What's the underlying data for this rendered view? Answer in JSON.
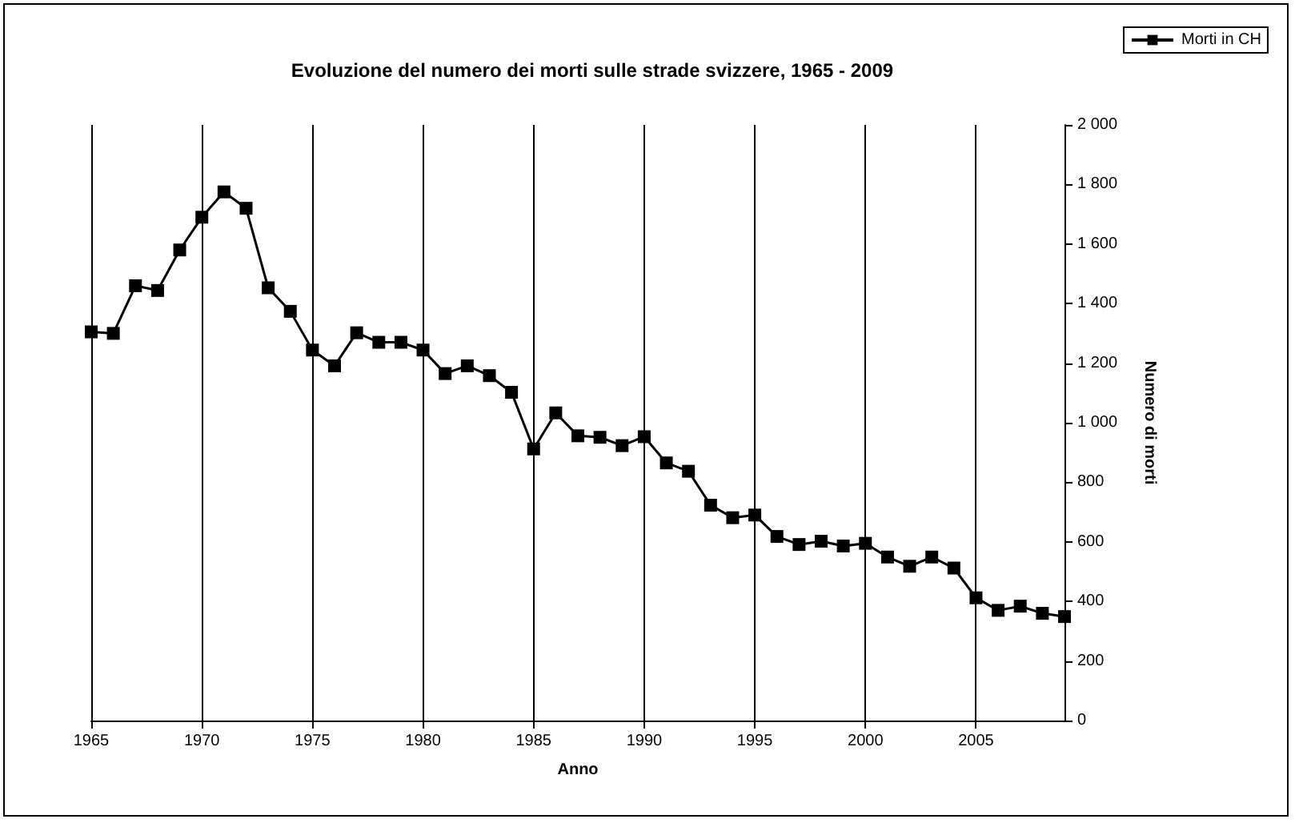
{
  "chart_data": {
    "type": "line",
    "title": "Evoluzione del numero dei morti sulle strade svizzere, 1965 - 2009",
    "xlabel": "Anno",
    "ylabel": "Numero di morti",
    "x": [
      1965,
      1966,
      1967,
      1968,
      1969,
      1970,
      1971,
      1972,
      1973,
      1974,
      1975,
      1976,
      1977,
      1978,
      1979,
      1980,
      1981,
      1982,
      1983,
      1984,
      1985,
      1986,
      1987,
      1988,
      1989,
      1990,
      1991,
      1992,
      1993,
      1994,
      1995,
      1996,
      1997,
      1998,
      1999,
      2000,
      2001,
      2002,
      2003,
      2004,
      2005,
      2006,
      2007,
      2008,
      2009
    ],
    "series": [
      {
        "name": "Morti in CH",
        "color": "#000000",
        "values": [
          1305,
          1300,
          1460,
          1444,
          1580,
          1690,
          1775,
          1720,
          1453,
          1374,
          1244,
          1191,
          1302,
          1270,
          1270,
          1244,
          1165,
          1191,
          1158,
          1102,
          912,
          1033,
          956,
          951,
          923,
          953,
          865,
          837,
          723,
          681,
          690,
          618,
          591,
          602,
          586,
          595,
          549,
          518,
          549,
          512,
          412,
          370,
          384,
          360,
          349
        ]
      }
    ],
    "xlim": [
      1965,
      2009
    ],
    "xticks": [
      1965,
      1970,
      1975,
      1980,
      1985,
      1990,
      1995,
      2000,
      2005
    ],
    "ylim": [
      0,
      2000
    ],
    "yticks": [
      0,
      {
        "value": 200,
        "label": "200"
      },
      {
        "value": 400,
        "label": "400"
      },
      {
        "value": 600,
        "label": "600"
      },
      {
        "value": 800,
        "label": "800"
      },
      {
        "value": 1000,
        "label": "1 000"
      },
      {
        "value": 1200,
        "label": "1 200"
      },
      {
        "value": 1400,
        "label": "1 400"
      },
      {
        "value": 1600,
        "label": "1 600"
      },
      {
        "value": 1800,
        "label": "1 800"
      },
      {
        "value": 2000,
        "label": "2 000"
      }
    ],
    "grid": "x",
    "legend": "top right",
    "marker": "square",
    "line_style": "solid"
  }
}
